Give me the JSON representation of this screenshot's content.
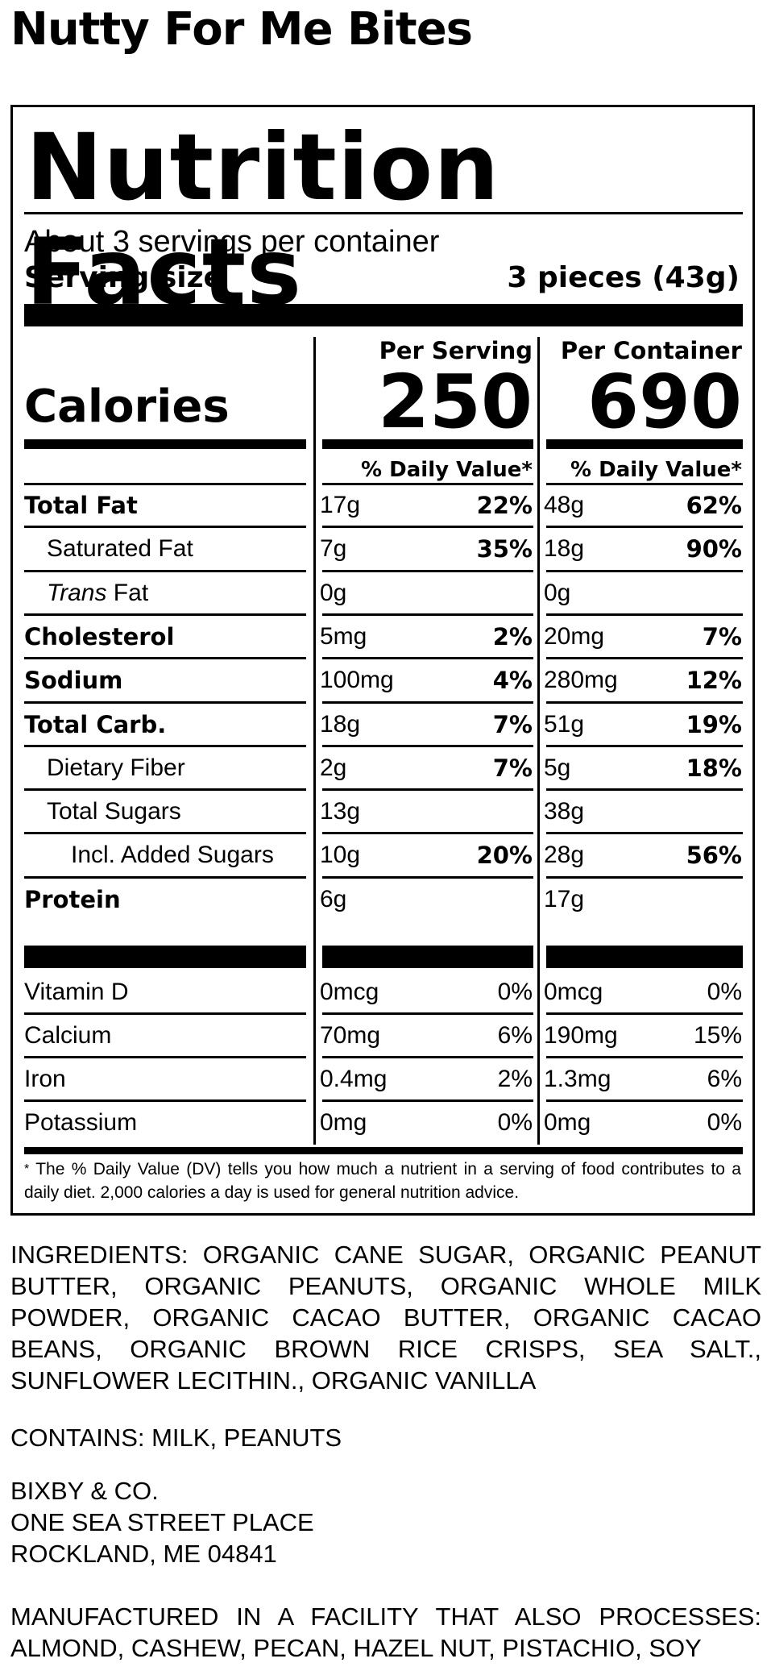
{
  "product": {
    "name": "Nutty For Me Bites"
  },
  "label": {
    "heading": "Nutrition Facts",
    "servings_per_container": "About 3 servings per container",
    "serving_size_label": "Serving size",
    "serving_size_value": "3 pieces (43g)",
    "calories_label": "Calories",
    "columns": [
      {
        "header": "Per Serving",
        "calories": "250",
        "dv_header": "% Daily Value*"
      },
      {
        "header": "Per Container",
        "calories": "690",
        "dv_header": "% Daily Value*"
      }
    ],
    "nutrients": [
      {
        "name": "Total Fat",
        "bold": true,
        "indent": 0,
        "serving_amount": "17g",
        "serving_dv": "22%",
        "container_amount": "48g",
        "container_dv": "62%"
      },
      {
        "name": "Saturated Fat",
        "bold": false,
        "indent": 1,
        "serving_amount": "7g",
        "serving_dv": "35%",
        "container_amount": "18g",
        "container_dv": "90%"
      },
      {
        "name_italic": "Trans",
        "name": " Fat",
        "bold": false,
        "indent": 1,
        "serving_amount": "0g",
        "serving_dv": "",
        "container_amount": "0g",
        "container_dv": ""
      },
      {
        "name": "Cholesterol",
        "bold": true,
        "indent": 0,
        "serving_amount": "5mg",
        "serving_dv": "2%",
        "container_amount": "20mg",
        "container_dv": "7%"
      },
      {
        "name": "Sodium",
        "bold": true,
        "indent": 0,
        "serving_amount": "100mg",
        "serving_dv": "4%",
        "container_amount": "280mg",
        "container_dv": "12%"
      },
      {
        "name": "Total Carb.",
        "bold": true,
        "indent": 0,
        "serving_amount": "18g",
        "serving_dv": "7%",
        "container_amount": "51g",
        "container_dv": "19%"
      },
      {
        "name": "Dietary Fiber",
        "bold": false,
        "indent": 1,
        "serving_amount": "2g",
        "serving_dv": "7%",
        "container_amount": "5g",
        "container_dv": "18%"
      },
      {
        "name": "Total Sugars",
        "bold": false,
        "indent": 1,
        "serving_amount": "13g",
        "serving_dv": "",
        "container_amount": "38g",
        "container_dv": ""
      },
      {
        "name": "Incl. Added Sugars",
        "bold": false,
        "indent": 2,
        "serving_amount": "10g",
        "serving_dv": "20%",
        "container_amount": "28g",
        "container_dv": "56%"
      },
      {
        "name": "Protein",
        "bold": true,
        "indent": 0,
        "serving_amount": "6g",
        "serving_dv": "",
        "container_amount": "17g",
        "container_dv": ""
      }
    ],
    "vitamins": [
      {
        "name": "Vitamin D",
        "serving_amount": "0mcg",
        "serving_dv": "0%",
        "container_amount": "0mcg",
        "container_dv": "0%"
      },
      {
        "name": "Calcium",
        "serving_amount": "70mg",
        "serving_dv": "6%",
        "container_amount": "190mg",
        "container_dv": "15%"
      },
      {
        "name": "Iron",
        "serving_amount": "0.4mg",
        "serving_dv": "2%",
        "container_amount": "1.3mg",
        "container_dv": "6%"
      },
      {
        "name": "Potassium",
        "serving_amount": "0mg",
        "serving_dv": "0%",
        "container_amount": "0mg",
        "container_dv": "0%"
      }
    ],
    "footnote_mark": "*",
    "footnote": "The % Daily Value (DV) tells you how much a nutrient in a serving of food contributes to a daily diet. 2,000 calories a day is used for general nutrition advice."
  },
  "ingredients": "INGREDIENTS: ORGANIC CANE SUGAR, ORGANIC PEANUT BUTTER, ORGANIC PEANUTS, ORGANIC WHOLE MILK POWDER, ORGANIC CACAO BUTTER, ORGANIC CACAO BEANS, ORGANIC BROWN RICE CRISPS, SEA SALT., SUNFLOWER LECITHIN., ORGANIC VANILLA",
  "contains": "CONTAINS: MILK, PEANUTS",
  "manufacturer": {
    "name": "BIXBY & CO.",
    "street": "ONE SEA STREET PLACE",
    "city": "ROCKLAND, ME 04841"
  },
  "facility_warning": "MANUFACTURED IN A FACILITY THAT ALSO PROCESSES: ALMOND, CASHEW, PECAN, HAZEL NUT, PISTACHIO, SOY"
}
